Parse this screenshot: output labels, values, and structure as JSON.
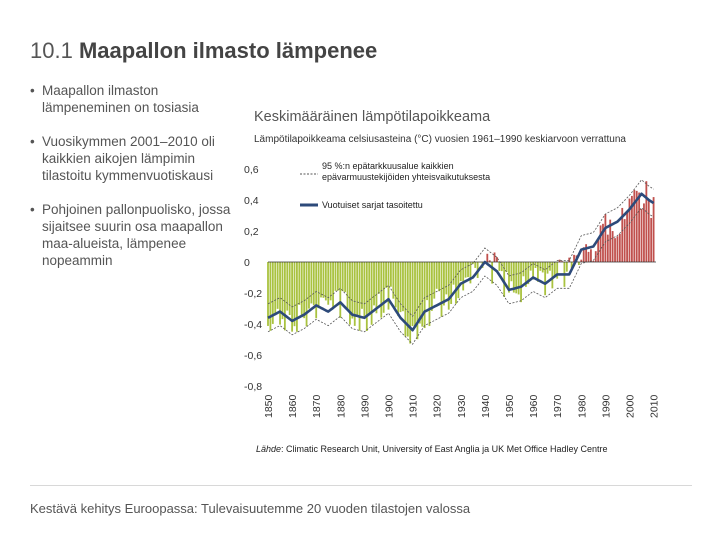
{
  "slide": {
    "number": "10.1",
    "title": "Maapallon ilmasto lämpenee",
    "footer": "Kestävä kehitys Euroopassa: Tulevaisuutemme 20 vuoden tilastojen valossa",
    "bullets": [
      "Maapallon ilmaston lämpeneminen on tosiasia",
      "Vuosikymmen 2001–2010 oli kaikkien aikojen lämpimin tilastoitu kymmenvuotiskausi",
      "Pohjoinen pallonpuolisko, jossa sijaitsee suurin osa maapallon maa-alueista, lämpenee nopeammin"
    ],
    "bullet_char": "•"
  },
  "colors": {
    "positive_bar": "#c0504d",
    "negative_bar": "#a9c23f",
    "smoothed_line": "#2d4a7a",
    "uncertainty_line": "#555555",
    "zero_line": "#333333"
  },
  "chart_data": {
    "type": "bar",
    "title": "Keskimääräinen lämpötilapoikkeama",
    "subtitle": "Lämpötilapoikkeama celsiusasteina (°C) vuosien 1961–1990 keskiarvoon verrattuna",
    "source_label": "Lähde",
    "source_text": ": Climatic Research Unit, University of East Anglia ja UK Met Office Hadley Centre",
    "xlabel": "",
    "ylabel": "",
    "ylim": [
      -0.8,
      0.7
    ],
    "xlim": [
      1850,
      2011
    ],
    "y_ticks": [
      0.6,
      0.4,
      0.2,
      0,
      -0.2,
      -0.4,
      -0.6,
      -0.8
    ],
    "y_tick_labels": [
      "0,6",
      "0,4",
      "0,2",
      "0",
      "-0,2",
      "-0,4",
      "-0,6",
      "-0,8"
    ],
    "x_ticks": [
      "1850",
      "1860",
      "1870",
      "1880",
      "1890",
      "1900",
      "1910",
      "1920",
      "1930",
      "1940",
      "1950",
      "1960",
      "1970",
      "1980",
      "1990",
      "2000",
      "2010"
    ],
    "legend": {
      "position": "top-left",
      "entries": [
        {
          "label": "95 %:n epätarkkuusalue kaikkien epävarmuustekijöiden yhteisvaikutuksesta",
          "style": "dashed"
        },
        {
          "label": "Vuotuiset sarjat tasoitettu",
          "style": "solid"
        }
      ]
    },
    "smoothed": {
      "years": [
        1850,
        1855,
        1860,
        1865,
        1870,
        1875,
        1880,
        1885,
        1890,
        1895,
        1900,
        1905,
        1910,
        1915,
        1920,
        1925,
        1930,
        1935,
        1940,
        1945,
        1950,
        1955,
        1960,
        1965,
        1970,
        1975,
        1980,
        1985,
        1990,
        1995,
        2000,
        2005,
        2008,
        2010
      ],
      "values": [
        -0.36,
        -0.32,
        -0.38,
        -0.34,
        -0.28,
        -0.32,
        -0.26,
        -0.34,
        -0.36,
        -0.3,
        -0.24,
        -0.36,
        -0.44,
        -0.32,
        -0.28,
        -0.24,
        -0.14,
        -0.1,
        0.0,
        -0.06,
        -0.18,
        -0.16,
        -0.1,
        -0.14,
        -0.08,
        -0.08,
        0.08,
        0.1,
        0.22,
        0.26,
        0.34,
        0.44,
        0.4,
        0.38
      ]
    },
    "uncertainty_band": 0.09
  }
}
